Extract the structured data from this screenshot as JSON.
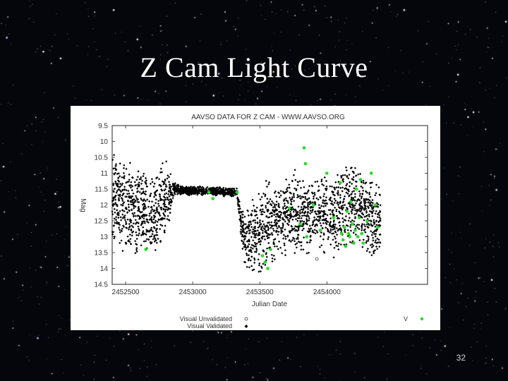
{
  "slide": {
    "title": "Z Cam Light Curve",
    "page_number": "32"
  },
  "colors": {
    "background": "#05060c",
    "visual": "#000000",
    "v_band": "#22dd22",
    "title_text": "#ffffff"
  },
  "chart_data": {
    "type": "scatter",
    "title": "AAVSO DATA FOR Z CAM - WWW.AAVSO.ORG",
    "xlabel": "Julian Date",
    "ylabel": "Mag",
    "xlim": [
      2452400,
      2454750
    ],
    "ylim": [
      14.5,
      9.5
    ],
    "y_inverted": true,
    "x_ticks": [
      2452500,
      2453000,
      2453500,
      2454000
    ],
    "x_tick_labels": [
      "2452500",
      "2453000",
      "2453500",
      "2454000"
    ],
    "y_ticks": [
      9.5,
      10,
      10.5,
      11,
      11.5,
      12,
      12.5,
      13,
      13.5,
      14,
      14.5
    ],
    "y_tick_labels": [
      "9.5",
      "10",
      "10.5",
      "11",
      "11.5",
      "12",
      "12.5",
      "13",
      "13.5",
      "14",
      "14.5"
    ],
    "grid": false,
    "legend_placement": "bottom",
    "legend": [
      {
        "label": "Visual Unvalidated",
        "symbol": "open-circle"
      },
      {
        "label": "Visual Validated",
        "symbol": "filled-diamond"
      },
      {
        "label": "V",
        "symbol": "filled-circle"
      }
    ],
    "series": [
      {
        "name": "Visual Validated",
        "segments": [
          {
            "jd": 2452400,
            "mag": 11.9,
            "spread": 1.6
          },
          {
            "jd": 2452500,
            "mag": 12.0,
            "spread": 1.6
          },
          {
            "jd": 2452600,
            "mag": 12.2,
            "spread": 1.5
          },
          {
            "jd": 2452700,
            "mag": 12.3,
            "spread": 1.4
          },
          {
            "jd": 2452800,
            "mag": 11.8,
            "spread": 1.3
          },
          {
            "jd": 2452860,
            "mag": 11.5,
            "spread": 0.2
          },
          {
            "jd": 2452950,
            "mag": 11.55,
            "spread": 0.15
          },
          {
            "jd": 2453100,
            "mag": 11.55,
            "spread": 0.15
          },
          {
            "jd": 2453250,
            "mag": 11.6,
            "spread": 0.15
          },
          {
            "jd": 2453330,
            "mag": 11.6,
            "spread": 0.15
          },
          {
            "jd": 2453380,
            "mag": 13.1,
            "spread": 0.9
          },
          {
            "jd": 2453450,
            "mag": 13.0,
            "spread": 1.4
          },
          {
            "jd": 2453550,
            "mag": 12.6,
            "spread": 1.4
          },
          {
            "jd": 2453650,
            "mag": 12.5,
            "spread": 1.2
          },
          {
            "jd": 2453750,
            "mag": 12.2,
            "spread": 1.4
          },
          {
            "jd": 2453850,
            "mag": 12.3,
            "spread": 1.3
          },
          {
            "jd": 2453950,
            "mag": 12.2,
            "spread": 1.4
          },
          {
            "jd": 2454050,
            "mag": 12.4,
            "spread": 1.3
          },
          {
            "jd": 2454150,
            "mag": 12.0,
            "spread": 1.4
          },
          {
            "jd": 2454250,
            "mag": 12.1,
            "spread": 1.3
          },
          {
            "jd": 2454350,
            "mag": 12.5,
            "spread": 1.2
          },
          {
            "jd": 2454400,
            "mag": 12.3,
            "spread": 1.4
          }
        ]
      },
      {
        "name": "V",
        "points": [
          [
            2452650,
            13.4
          ],
          [
            2453120,
            11.6
          ],
          [
            2453150,
            11.8
          ],
          [
            2453330,
            11.6
          ],
          [
            2453520,
            13.6
          ],
          [
            2453540,
            13.8
          ],
          [
            2453560,
            14.0
          ],
          [
            2453580,
            13.4
          ],
          [
            2453720,
            12.1
          ],
          [
            2453800,
            12.6
          ],
          [
            2453830,
            10.2
          ],
          [
            2453840,
            10.7
          ],
          [
            2453850,
            13.0
          ],
          [
            2453900,
            12.0
          ],
          [
            2453950,
            12.8
          ],
          [
            2454000,
            11.0
          ],
          [
            2454050,
            12.4
          ],
          [
            2454100,
            11.3
          ],
          [
            2454110,
            12.9
          ],
          [
            2454120,
            13.1
          ],
          [
            2454130,
            12.7
          ],
          [
            2454140,
            13.3
          ],
          [
            2454150,
            12.2
          ],
          [
            2454160,
            12.9
          ],
          [
            2454170,
            13.0
          ],
          [
            2454180,
            11.9
          ],
          [
            2454190,
            12.6
          ],
          [
            2454200,
            13.2
          ],
          [
            2454210,
            12.8
          ],
          [
            2454220,
            11.5
          ],
          [
            2454230,
            13.0
          ],
          [
            2454240,
            12.4
          ],
          [
            2454250,
            11.2
          ],
          [
            2454260,
            12.9
          ],
          [
            2454270,
            13.2
          ],
          [
            2454300,
            12.5
          ],
          [
            2454330,
            11.0
          ],
          [
            2454360,
            12.0
          ],
          [
            2454380,
            12.7
          ]
        ]
      },
      {
        "name": "Visual Unvalidated",
        "points": [
          [
            2453925,
            13.7
          ]
        ]
      }
    ]
  }
}
